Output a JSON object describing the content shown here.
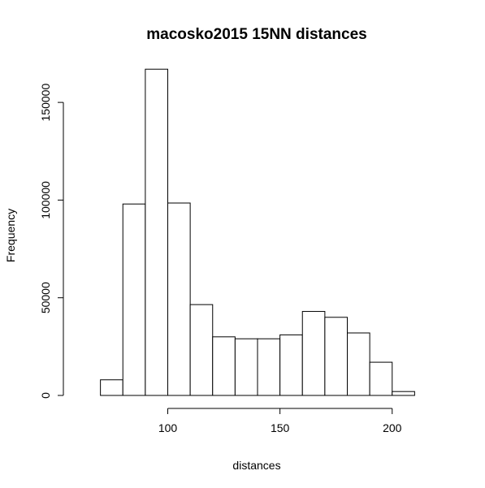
{
  "chart_data": {
    "type": "bar",
    "title": "macosko2015 15NN distances",
    "xlabel": "distances",
    "ylabel": "Frequency",
    "bin_edges": [
      70,
      80,
      90,
      100,
      110,
      120,
      130,
      140,
      150,
      160,
      170,
      180,
      190,
      200,
      210
    ],
    "values": [
      8000,
      98000,
      167000,
      98500,
      46500,
      30000,
      29000,
      29000,
      31000,
      43000,
      40000,
      32000,
      17000,
      2000
    ],
    "xlim": [
      60,
      220
    ],
    "ylim": [
      0,
      170000
    ],
    "x_ticks": [
      100,
      150,
      200
    ],
    "x_tick_labels": [
      "100",
      "150",
      "200"
    ],
    "y_ticks": [
      0,
      50000,
      100000,
      150000
    ],
    "y_tick_labels": [
      "0",
      "50000",
      "100000",
      "150000"
    ],
    "grid": false,
    "colors": {
      "bar_fill": "#ffffff",
      "bar_stroke": "#000000"
    }
  }
}
